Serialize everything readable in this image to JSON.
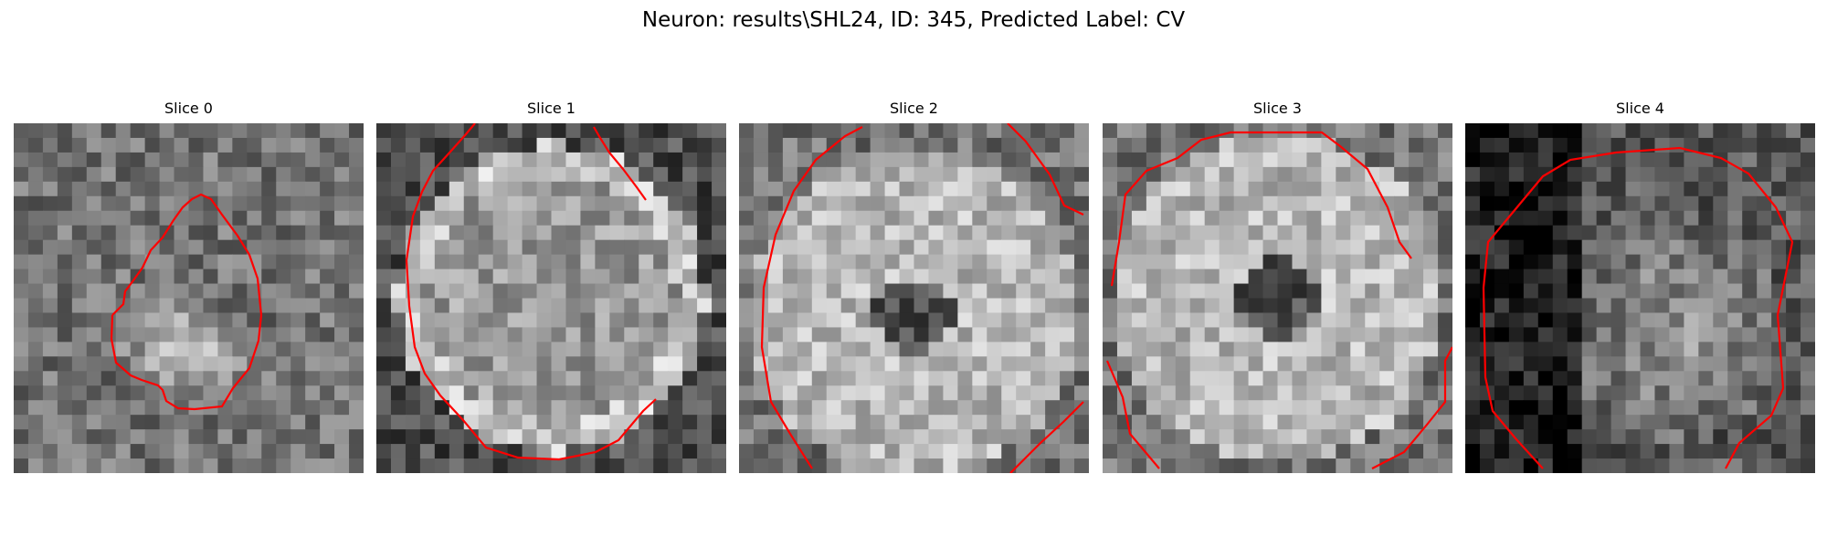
{
  "figure": {
    "title": "Neuron: results\\SHL24, ID: 345, Predicted Label: CV",
    "contour_color": "#ff0000",
    "colormap": "gray",
    "slices": [
      {
        "title": "Slice 0",
        "seed": 11,
        "style": "dark",
        "blob": [
          0.48,
          0.66,
          0.22,
          0.18
        ]
      },
      {
        "title": "Slice 1",
        "seed": 23,
        "style": "ring",
        "blob": [
          0.5,
          0.5,
          0.42,
          0.42
        ]
      },
      {
        "title": "Slice 2",
        "seed": 37,
        "style": "bright",
        "blob": [
          0.5,
          0.55,
          0.45,
          0.45
        ]
      },
      {
        "title": "Slice 3",
        "seed": 41,
        "style": "bright",
        "blob": [
          0.5,
          0.5,
          0.45,
          0.45
        ]
      },
      {
        "title": "Slice 4",
        "seed": 53,
        "style": "darkleft",
        "blob": [
          0.6,
          0.6,
          0.4,
          0.4
        ]
      }
    ]
  }
}
